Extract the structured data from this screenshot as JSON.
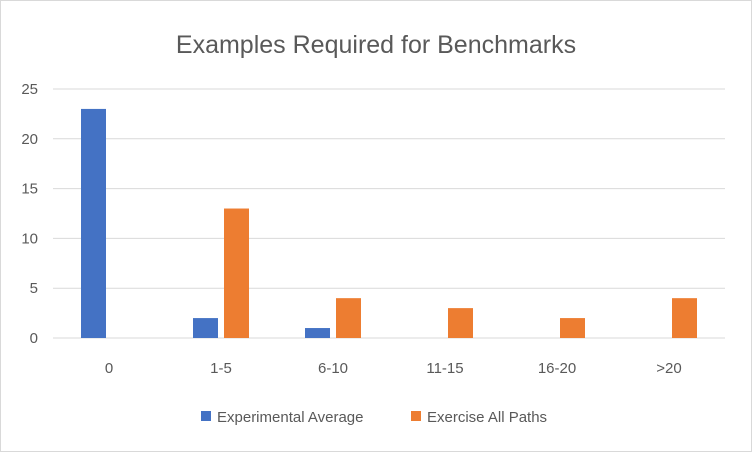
{
  "chart_data": {
    "type": "bar",
    "title": "Examples Required for Benchmarks",
    "xlabel": "",
    "ylabel": "",
    "categories": [
      "0",
      "1-5",
      "6-10",
      "11-15",
      "16-20",
      ">20"
    ],
    "series": [
      {
        "name": "Experimental Average",
        "color": "#4472c4",
        "values": [
          23,
          2,
          1,
          0,
          0,
          0
        ]
      },
      {
        "name": "Exercise All Paths",
        "color": "#ed7d31",
        "values": [
          0,
          13,
          4,
          3,
          2,
          4
        ]
      }
    ],
    "ylim": [
      0,
      25
    ],
    "yticks": [
      "0",
      "5",
      "10",
      "15",
      "20",
      "25"
    ],
    "grid": true,
    "legend_position": "bottom"
  }
}
